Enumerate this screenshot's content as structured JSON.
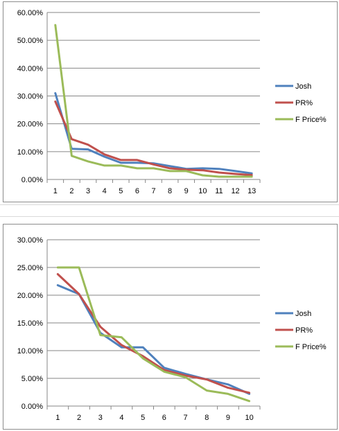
{
  "chart_data": [
    {
      "type": "line",
      "title": "",
      "xlabel": "",
      "ylabel": "",
      "ylim": [
        0,
        60
      ],
      "yticks": [
        "0.00%",
        "10.00%",
        "20.00%",
        "30.00%",
        "40.00%",
        "50.00%",
        "60.00%"
      ],
      "y_tick_values": [
        0,
        10,
        20,
        30,
        40,
        50,
        60
      ],
      "grid": "horizontal",
      "legend": "right",
      "categories": [
        "1",
        "2",
        "3",
        "4",
        "5",
        "6",
        "7",
        "8",
        "9",
        "10",
        "11",
        "12",
        "13"
      ],
      "series": [
        {
          "name": "Josh",
          "color": "#4f81bd",
          "values": [
            31,
            11,
            10.8,
            8.2,
            6,
            6,
            5.8,
            4.8,
            3.8,
            4,
            3.8,
            3,
            2.2
          ]
        },
        {
          "name": "PR%",
          "color": "#c0504d",
          "values": [
            28,
            14.5,
            12.5,
            9,
            7,
            7,
            5.4,
            4,
            3.5,
            3.3,
            2.5,
            2,
            1.6
          ]
        },
        {
          "name": "F Price%",
          "color": "#9bbb59",
          "values": [
            55.5,
            8.5,
            6.5,
            5,
            5,
            4,
            4,
            3,
            3,
            1.5,
            1,
            1,
            1
          ]
        }
      ]
    },
    {
      "type": "line",
      "title": "",
      "xlabel": "",
      "ylabel": "",
      "ylim": [
        0,
        30
      ],
      "yticks": [
        "0.00%",
        "5.00%",
        "10.00%",
        "15.00%",
        "20.00%",
        "25.00%",
        "30.00%"
      ],
      "y_tick_values": [
        0,
        5,
        10,
        15,
        20,
        25,
        30
      ],
      "grid": "horizontal",
      "legend": "right",
      "categories": [
        "1",
        "2",
        "3",
        "4",
        "5",
        "6",
        "7",
        "8",
        "9",
        "10"
      ],
      "series": [
        {
          "name": "Josh",
          "color": "#4f81bd",
          "values": [
            21.8,
            20.2,
            13.2,
            10.6,
            10.6,
            6.9,
            5.8,
            4.8,
            3.9,
            2.2
          ]
        },
        {
          "name": "PR%",
          "color": "#c0504d",
          "values": [
            23.8,
            20.2,
            14.3,
            11,
            9,
            6.5,
            5.5,
            4.8,
            3.3,
            2.4
          ]
        },
        {
          "name": "F Price%",
          "color": "#9bbb59",
          "values": [
            25,
            25,
            12.8,
            12.4,
            8.6,
            6.2,
            5.2,
            2.8,
            2.2,
            0.9
          ]
        }
      ]
    }
  ]
}
